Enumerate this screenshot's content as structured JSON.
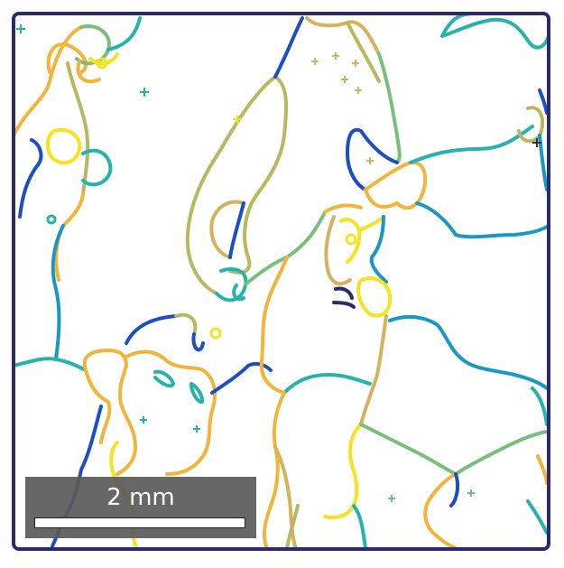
{
  "colors": {
    "frame": "#2b2a6e",
    "navy": "#2b2a6e",
    "blue": "#1c4fc4",
    "cyan": "#1a97c4",
    "teal": "#26b3ad",
    "green": "#79bf7a",
    "olive": "#b8b860",
    "tan": "#d6b25c",
    "orange": "#f2b43a",
    "yellow": "#f7e21e"
  },
  "scale_bar": {
    "label": "2 mm"
  }
}
